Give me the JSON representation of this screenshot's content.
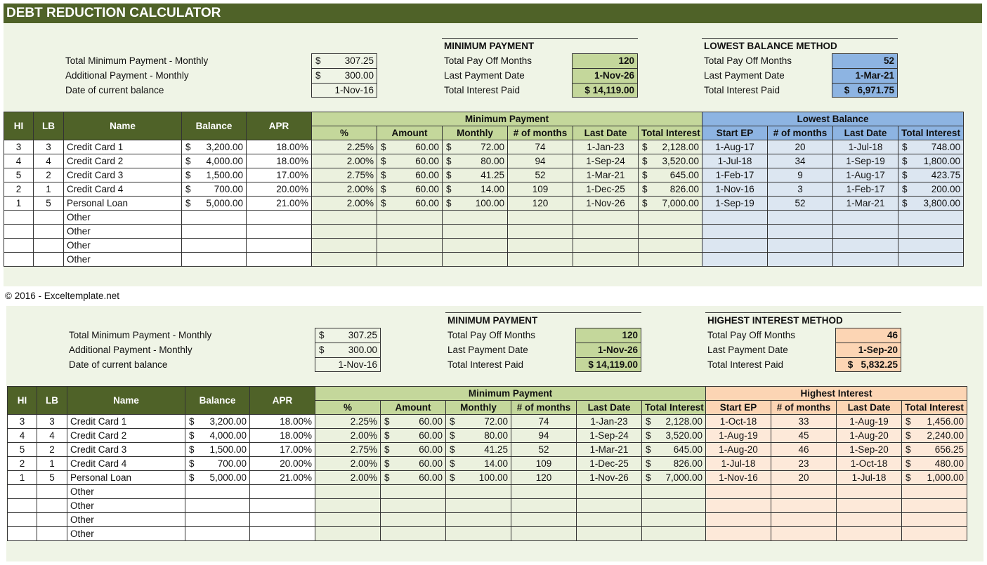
{
  "title": "DEBT REDUCTION CALCULATOR",
  "copyright": "© 2016 - Exceltemplate.net",
  "currency": "$",
  "colors": {
    "dark_green": "#4f6228",
    "min_header": "#c4d79b",
    "min_cell": "#ebf1de",
    "lb_header": "#8db4e2",
    "lb_cell": "#dce6f1",
    "hi_header": "#fcd5b4",
    "hi_cell": "#fde9d9"
  },
  "sections": [
    {
      "inputs": [
        {
          "label": "Total Minimum Payment - Monthly",
          "value": "307.25",
          "currency": true
        },
        {
          "label": "Additional Payment - Monthly",
          "value": "300.00",
          "currency": true
        },
        {
          "label": "Date of current balance",
          "value": "1-Nov-16",
          "currency": false
        }
      ],
      "min_summary": {
        "title": "MINIMUM PAYMENT",
        "rows": [
          {
            "label": "Total Pay Off Months",
            "value": "120"
          },
          {
            "label": "Last Payment Date",
            "value": "1-Nov-26"
          },
          {
            "label": "Total Interest Paid",
            "value": "$ 14,119.00"
          }
        ]
      },
      "method_summary": {
        "title": "LOWEST BALANCE METHOD",
        "rows": [
          {
            "label": "Total Pay Off Months",
            "value": "52"
          },
          {
            "label": "Last Payment Date",
            "value": "1-Mar-21"
          },
          {
            "label": "Total Interest Paid",
            "value": "$   6,971.75"
          }
        ]
      },
      "headers": {
        "hi": "HI",
        "lb": "LB",
        "name": "Name",
        "balance": "Balance",
        "apr": "APR",
        "min_group": "Minimum Payment",
        "pct": "%",
        "amount": "Amount",
        "monthly": "Monthly",
        "months": "# of months",
        "last_date": "Last Date",
        "total_interest": "Total Interest",
        "method_group": "Lowest Balance",
        "start_ep": "Start EP",
        "m_months": "# of months",
        "m_last_date": "Last Date",
        "m_total_interest": "Total Interest"
      },
      "rows": [
        {
          "hi": "3",
          "lb": "3",
          "name": "Credit Card 1",
          "balance": "3,200.00",
          "apr": "18.00%",
          "pct": "2.25%",
          "amount": "60.00",
          "monthly": "72.00",
          "months": "74",
          "last_date": "1-Jan-23",
          "total_interest": "2,128.00",
          "start_ep": "1-Aug-17",
          "m_months": "20",
          "m_last_date": "1-Jul-18",
          "m_total_interest": "748.00"
        },
        {
          "hi": "4",
          "lb": "4",
          "name": "Credit Card 2",
          "balance": "4,000.00",
          "apr": "18.00%",
          "pct": "2.00%",
          "amount": "60.00",
          "monthly": "80.00",
          "months": "94",
          "last_date": "1-Sep-24",
          "total_interest": "3,520.00",
          "start_ep": "1-Jul-18",
          "m_months": "34",
          "m_last_date": "1-Sep-19",
          "m_total_interest": "1,800.00"
        },
        {
          "hi": "5",
          "lb": "2",
          "name": "Credit Card 3",
          "balance": "1,500.00",
          "apr": "17.00%",
          "pct": "2.75%",
          "amount": "60.00",
          "monthly": "41.25",
          "months": "52",
          "last_date": "1-Mar-21",
          "total_interest": "645.00",
          "start_ep": "1-Feb-17",
          "m_months": "9",
          "m_last_date": "1-Aug-17",
          "m_total_interest": "423.75"
        },
        {
          "hi": "2",
          "lb": "1",
          "name": "Credit Card 4",
          "balance": "700.00",
          "apr": "20.00%",
          "pct": "2.00%",
          "amount": "60.00",
          "monthly": "14.00",
          "months": "109",
          "last_date": "1-Dec-25",
          "total_interest": "826.00",
          "start_ep": "1-Nov-16",
          "m_months": "3",
          "m_last_date": "1-Feb-17",
          "m_total_interest": "200.00"
        },
        {
          "hi": "1",
          "lb": "5",
          "name": "Personal Loan",
          "balance": "5,000.00",
          "apr": "21.00%",
          "pct": "2.00%",
          "amount": "60.00",
          "monthly": "100.00",
          "months": "120",
          "last_date": "1-Nov-26",
          "total_interest": "7,000.00",
          "start_ep": "1-Sep-19",
          "m_months": "52",
          "m_last_date": "1-Mar-21",
          "m_total_interest": "3,800.00"
        },
        {
          "name": "Other"
        },
        {
          "name": "Other"
        },
        {
          "name": "Other"
        },
        {
          "name": "Other"
        }
      ]
    },
    {
      "inputs": [
        {
          "label": "Total Minimum Payment - Monthly",
          "value": "307.25",
          "currency": true
        },
        {
          "label": "Additional Payment - Monthly",
          "value": "300.00",
          "currency": true
        },
        {
          "label": "Date of current balance",
          "value": "1-Nov-16",
          "currency": false
        }
      ],
      "min_summary": {
        "title": "MINIMUM PAYMENT",
        "rows": [
          {
            "label": "Total Pay Off Months",
            "value": "120"
          },
          {
            "label": "Last Payment Date",
            "value": "1-Nov-26"
          },
          {
            "label": "Total Interest Paid",
            "value": "$ 14,119.00"
          }
        ]
      },
      "method_summary": {
        "title": "HIGHEST INTEREST METHOD",
        "rows": [
          {
            "label": "Total Pay Off Months",
            "value": "46"
          },
          {
            "label": "Last Payment Date",
            "value": "1-Sep-20"
          },
          {
            "label": "Total Interest Paid",
            "value": "$   5,832.25"
          }
        ]
      },
      "headers": {
        "hi": "HI",
        "lb": "LB",
        "name": "Name",
        "balance": "Balance",
        "apr": "APR",
        "min_group": "Minimum Payment",
        "pct": "%",
        "amount": "Amount",
        "monthly": "Monthly",
        "months": "# of months",
        "last_date": "Last Date",
        "total_interest": "Total Interest",
        "method_group": "Highest Interest",
        "start_ep": "Start EP",
        "m_months": "# of months",
        "m_last_date": "Last Date",
        "m_total_interest": "Total Interest"
      },
      "rows": [
        {
          "hi": "3",
          "lb": "3",
          "name": "Credit Card 1",
          "balance": "3,200.00",
          "apr": "18.00%",
          "pct": "2.25%",
          "amount": "60.00",
          "monthly": "72.00",
          "months": "74",
          "last_date": "1-Jan-23",
          "total_interest": "2,128.00",
          "start_ep": "1-Oct-18",
          "m_months": "33",
          "m_last_date": "1-Aug-19",
          "m_total_interest": "1,456.00"
        },
        {
          "hi": "4",
          "lb": "4",
          "name": "Credit Card 2",
          "balance": "4,000.00",
          "apr": "18.00%",
          "pct": "2.00%",
          "amount": "60.00",
          "monthly": "80.00",
          "months": "94",
          "last_date": "1-Sep-24",
          "total_interest": "3,520.00",
          "start_ep": "1-Aug-19",
          "m_months": "45",
          "m_last_date": "1-Aug-20",
          "m_total_interest": "2,240.00"
        },
        {
          "hi": "5",
          "lb": "2",
          "name": "Credit Card 3",
          "balance": "1,500.00",
          "apr": "17.00%",
          "pct": "2.75%",
          "amount": "60.00",
          "monthly": "41.25",
          "months": "52",
          "last_date": "1-Mar-21",
          "total_interest": "645.00",
          "start_ep": "1-Aug-20",
          "m_months": "46",
          "m_last_date": "1-Sep-20",
          "m_total_interest": "656.25"
        },
        {
          "hi": "2",
          "lb": "1",
          "name": "Credit Card 4",
          "balance": "700.00",
          "apr": "20.00%",
          "pct": "2.00%",
          "amount": "60.00",
          "monthly": "14.00",
          "months": "109",
          "last_date": "1-Dec-25",
          "total_interest": "826.00",
          "start_ep": "1-Jul-18",
          "m_months": "23",
          "m_last_date": "1-Oct-18",
          "m_total_interest": "480.00"
        },
        {
          "hi": "1",
          "lb": "5",
          "name": "Personal Loan",
          "balance": "5,000.00",
          "apr": "21.00%",
          "pct": "2.00%",
          "amount": "60.00",
          "monthly": "100.00",
          "months": "120",
          "last_date": "1-Nov-26",
          "total_interest": "7,000.00",
          "start_ep": "1-Nov-16",
          "m_months": "20",
          "m_last_date": "1-Jul-18",
          "m_total_interest": "1,000.00"
        },
        {
          "name": "Other"
        },
        {
          "name": "Other"
        },
        {
          "name": "Other"
        },
        {
          "name": "Other"
        }
      ]
    }
  ]
}
